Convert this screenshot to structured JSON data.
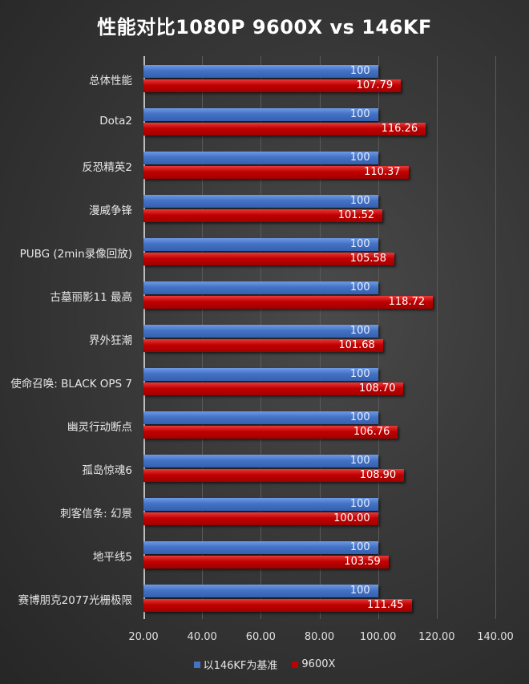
{
  "title": "性能对比1080P 9600X vs 146KF",
  "colors": {
    "baseline": "#4472c4",
    "compare": "#c00000"
  },
  "legend": {
    "baseline_label": "以146KF为基准",
    "compare_label": "9600X"
  },
  "chart_data": {
    "type": "bar",
    "orientation": "horizontal",
    "title": "性能对比1080P 9600X vs 146KF",
    "xlabel": "",
    "ylabel": "",
    "xlim": [
      20,
      140
    ],
    "x_ticks": [
      "20.00",
      "40.00",
      "60.00",
      "80.00",
      "100.00",
      "120.00",
      "140.00"
    ],
    "grid": true,
    "legend_position": "bottom",
    "categories": [
      "总体性能",
      "Dota2",
      "反恐精英2",
      "漫威争锋",
      "PUBG (2min录像回放)",
      "古墓丽影11 最高",
      "界外狂潮",
      "使命召唤: BLACK OPS 7",
      "幽灵行动断点",
      "孤岛惊魂6",
      "刺客信条: 幻景",
      "地平线5",
      "赛博朋克2077光栅极限"
    ],
    "series": [
      {
        "name": "以146KF为基准",
        "color": "#4472c4",
        "values": [
          100,
          100,
          100,
          100,
          100,
          100,
          100,
          100,
          100,
          100,
          100,
          100,
          100
        ],
        "labels": [
          "100",
          "100",
          "100",
          "100",
          "100",
          "100",
          "100",
          "100",
          "100",
          "100",
          "100",
          "100",
          "100"
        ]
      },
      {
        "name": "9600X",
        "color": "#c00000",
        "values": [
          107.79,
          116.26,
          110.37,
          101.52,
          105.58,
          118.72,
          101.68,
          108.7,
          106.76,
          108.9,
          100.0,
          103.59,
          111.45
        ],
        "labels": [
          "107.79",
          "116.26",
          "110.37",
          "101.52",
          "105.58",
          "118.72",
          "101.68",
          "108.70",
          "106.76",
          "108.90",
          "100.00",
          "103.59",
          "111.45"
        ]
      }
    ]
  }
}
